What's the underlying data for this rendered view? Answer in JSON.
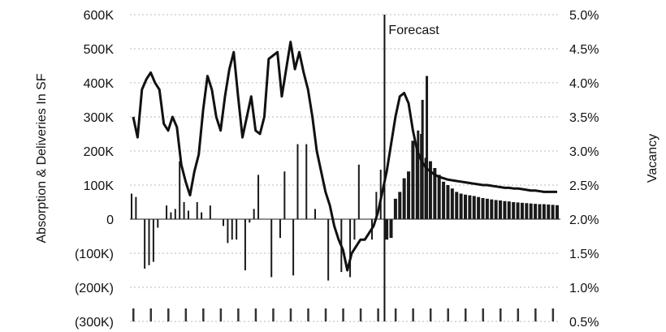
{
  "chart_data": {
    "type": "bar+line",
    "title": "",
    "ylabel_left": "Absorption & Deliveries In SF",
    "ylabel_right": "Vacancy",
    "ylim_left": [
      -300000,
      600000
    ],
    "ylim_right": [
      0.5,
      5.0
    ],
    "yticks_left": [
      "600K",
      "500K",
      "400K",
      "300K",
      "200K",
      "100K",
      "0",
      "(100K)",
      "(200K)",
      "(300K)"
    ],
    "yticks_right": [
      "5.0%",
      "4.5%",
      "4.0%",
      "3.5%",
      "3.0%",
      "2.5%",
      "2.0%",
      "1.5%",
      "1.0%",
      "0.5%"
    ],
    "annotation": "Forecast",
    "forecast_start_index": 57,
    "grid": "dotted horizontal",
    "series": [
      {
        "kind": "bar",
        "values": [
          75000,
          65000,
          0,
          -145000,
          -135000,
          -125000,
          -25000,
          0,
          40000,
          20000,
          30000,
          170000,
          50000,
          25000,
          0,
          50000,
          20000,
          0,
          40000,
          0,
          0,
          -20000,
          -70000,
          -60000,
          -60000,
          0,
          -150000,
          -10000,
          30000,
          130000,
          0,
          0,
          -170000,
          0,
          -55000,
          140000,
          0,
          -165000,
          220000,
          0,
          220000,
          0,
          30000,
          0,
          0,
          -180000,
          0,
          0,
          -155000,
          0,
          -170000,
          -60000,
          160000,
          0,
          0,
          -60000,
          80000,
          145000
        ],
        "unit": "SF"
      },
      {
        "kind": "bar",
        "values": [
          0,
          0,
          0,
          0,
          0,
          0,
          0,
          0,
          0,
          0,
          0,
          0,
          0,
          0,
          0,
          0,
          0,
          0,
          0,
          0,
          0,
          0,
          0,
          0,
          0,
          0,
          0,
          0,
          0,
          0,
          0,
          0,
          0,
          0,
          0,
          0,
          0,
          0,
          0,
          0,
          0,
          0,
          0,
          0,
          0,
          0,
          0,
          0,
          0,
          0,
          0,
          0,
          0,
          0,
          0,
          0,
          0,
          0,
          -60000,
          -55000,
          60000,
          80000,
          120000,
          140000,
          230000,
          220000,
          250000,
          180000,
          170000,
          150000,
          130000,
          110000,
          100000,
          90000,
          80000,
          75000,
          72000,
          70000,
          68000,
          65000,
          62000,
          60000,
          58000,
          56000,
          55000,
          53000,
          52000,
          50000,
          49000,
          48000,
          47000,
          46000,
          45000,
          44000,
          44000,
          43000,
          42000,
          41000
        ],
        "unit": "SF"
      },
      {
        "kind": "bar",
        "values": [
          0,
          0,
          0,
          0,
          0,
          0,
          0,
          0,
          0,
          0,
          0,
          0,
          0,
          0,
          0,
          0,
          0,
          0,
          0,
          0,
          0,
          0,
          0,
          0,
          0,
          0,
          0,
          0,
          0,
          0,
          0,
          0,
          0,
          0,
          0,
          0,
          0,
          0,
          0,
          0,
          0,
          0,
          0,
          0,
          0,
          0,
          0,
          0,
          0,
          0,
          0,
          0,
          0,
          0,
          0,
          0,
          0,
          0,
          0,
          0,
          0,
          0,
          0,
          0,
          0,
          260000,
          350000,
          420000,
          0,
          0,
          0,
          0,
          0,
          0,
          0,
          0,
          0,
          0,
          0,
          0,
          0,
          0,
          0,
          0,
          0,
          0,
          0,
          0,
          0,
          0,
          0,
          0,
          0,
          0,
          0,
          0,
          0,
          0
        ],
        "unit": "SF"
      },
      {
        "kind": "line",
        "axis": "right",
        "values": [
          3.5,
          3.2,
          3.9,
          4.05,
          4.15,
          4.0,
          3.9,
          3.4,
          3.3,
          3.5,
          3.35,
          2.8,
          2.55,
          2.35,
          2.7,
          2.95,
          3.6,
          4.1,
          3.9,
          3.5,
          3.3,
          3.8,
          4.2,
          4.45,
          3.8,
          3.2,
          3.5,
          3.8,
          3.3,
          3.25,
          3.5,
          4.35,
          4.4,
          4.45,
          3.8,
          4.2,
          4.6,
          4.2,
          4.45,
          4.15,
          3.9,
          3.5,
          3.0,
          2.7,
          2.4,
          2.2,
          1.9,
          1.7,
          1.55,
          1.25,
          1.5,
          1.6,
          1.7,
          1.7,
          1.8,
          1.9,
          2.1,
          2.4,
          2.7,
          3.1,
          3.5,
          3.8,
          3.85,
          3.7,
          3.3,
          3.0,
          2.85,
          2.75,
          2.7,
          2.65,
          2.62,
          2.6,
          2.58,
          2.57,
          2.56,
          2.55,
          2.54,
          2.53,
          2.52,
          2.51,
          2.5,
          2.5,
          2.49,
          2.48,
          2.47,
          2.46,
          2.46,
          2.45,
          2.45,
          2.44,
          2.43,
          2.42,
          2.42,
          2.41,
          2.4,
          2.4,
          2.4,
          2.4
        ],
        "unit": "%"
      }
    ]
  }
}
